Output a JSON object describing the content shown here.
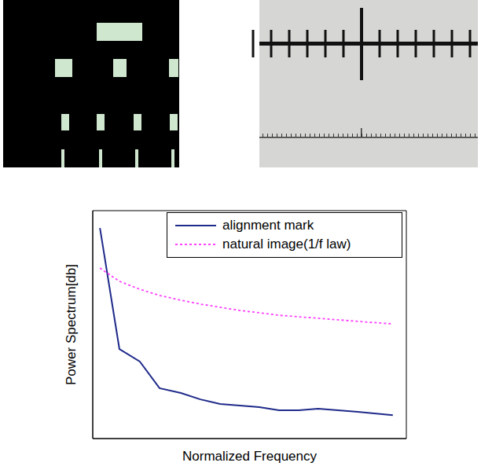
{
  "chart_data": {
    "type": "line",
    "xlabel": "Normalized Frequency",
    "ylabel": "Power Spectrum[db]",
    "x": [
      0.023,
      0.085,
      0.15,
      0.213,
      0.281,
      0.343,
      0.406,
      0.469,
      0.531,
      0.594,
      0.657,
      0.719,
      0.782,
      0.845,
      0.957
    ],
    "series": [
      {
        "name": "alignment mark",
        "color": "#1f2a8a",
        "line_style": "solid",
        "values": [
          92.4,
          39.3,
          33.8,
          22.1,
          20.0,
          17.2,
          15.2,
          14.5,
          13.8,
          12.4,
          12.4,
          13.1,
          12.4,
          11.7,
          10.3
        ]
      },
      {
        "name": "natural image(1/f law)",
        "color": "#ff40ff",
        "line_style": "dotted",
        "values": [
          74.8,
          69.0,
          65.5,
          62.8,
          60.7,
          59.0,
          57.6,
          56.2,
          55.2,
          54.1,
          53.4,
          52.8,
          52.1,
          51.4,
          50.3
        ]
      }
    ],
    "xlim": [
      0,
      1
    ],
    "ylim": [
      0,
      100
    ],
    "tick_labels": false,
    "legend": "upper right"
  }
}
